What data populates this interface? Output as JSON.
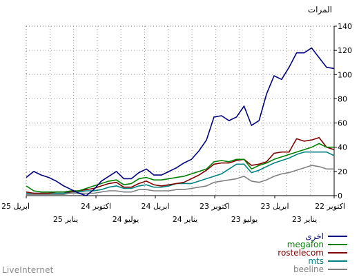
{
  "chart_data": {
    "type": "line",
    "ylabel": "المرات",
    "ylim": [
      0,
      140
    ],
    "yticks": [
      "0",
      "20",
      "40",
      "60",
      "80",
      "100",
      "120",
      "140"
    ],
    "x_ticks_top": [
      "22 اكتوبر",
      "23 ابريل",
      "23 اكتوبر",
      "24 ابريل",
      "24 اكتوبر",
      "25 ابريل"
    ],
    "x_ticks_bottom": [
      "23 يناير",
      "23 يوليو",
      "24 يناير",
      "24 يوليو",
      "25 يناير"
    ],
    "x_direction": "right-to-left",
    "grid": true,
    "legend_position": "bottom-right",
    "n_points": 42,
    "series": [
      {
        "name": "اخرى",
        "color": "#000080",
        "values": [
          105,
          106,
          114,
          122,
          118,
          118,
          106,
          96,
          99,
          84,
          62,
          58,
          74,
          65,
          62,
          66,
          65,
          46,
          37,
          30,
          27,
          23,
          20,
          17,
          17,
          22,
          19,
          14,
          14,
          20,
          16,
          12,
          5,
          0,
          2,
          5,
          8,
          12,
          15,
          17,
          20,
          15
        ]
      },
      {
        "name": "megafon",
        "color": "#008000",
        "values": [
          40,
          40,
          43,
          40,
          38,
          36,
          34,
          32,
          30,
          27,
          25,
          22,
          30,
          30,
          28,
          29,
          28,
          22,
          20,
          18,
          16,
          15,
          14,
          13,
          13,
          15,
          14,
          10,
          9,
          13,
          12,
          10,
          8,
          6,
          4,
          4,
          3,
          3,
          3,
          3,
          4,
          8
        ]
      },
      {
        "name": "rostelecom",
        "color": "#800000",
        "values": [
          38,
          40,
          48,
          46,
          45,
          47,
          36,
          36,
          35,
          28,
          26,
          25,
          30,
          29,
          27,
          27,
          26,
          21,
          17,
          14,
          11,
          10,
          9,
          8,
          9,
          12,
          10,
          7,
          7,
          11,
          10,
          8,
          6,
          5,
          4,
          3,
          3,
          3,
          2,
          2,
          2,
          3
        ]
      },
      {
        "name": "mts",
        "color": "#008080",
        "values": [
          33,
          36,
          36,
          36,
          36,
          34,
          31,
          29,
          27,
          24,
          21,
          19,
          26,
          26,
          22,
          18,
          16,
          14,
          12,
          10,
          10,
          10,
          8,
          7,
          7,
          9,
          8,
          6,
          6,
          8,
          7,
          5,
          4,
          4,
          3,
          3,
          2,
          2,
          2,
          2,
          2,
          2
        ]
      },
      {
        "name": "beeline",
        "color": "#808080",
        "values": [
          22,
          22,
          24,
          25,
          23,
          21,
          19,
          18,
          16,
          13,
          11,
          12,
          16,
          14,
          13,
          12,
          11,
          8,
          7,
          6,
          5,
          5,
          4,
          4,
          4,
          5,
          5,
          3,
          3,
          4,
          4,
          3,
          2,
          2,
          2,
          2,
          1,
          1,
          1,
          1,
          1,
          1
        ]
      }
    ]
  },
  "watermark": "LiveInternet"
}
